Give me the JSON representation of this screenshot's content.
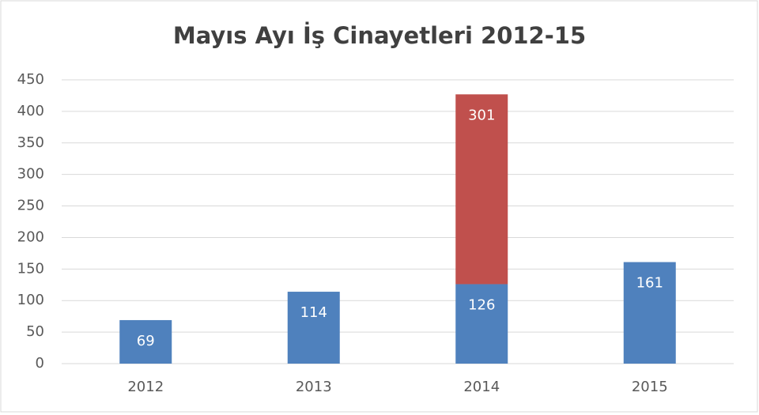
{
  "chart_data": {
    "type": "stacked_bar",
    "title": "Mayıs Ayı İş Cinayetleri 2012-15",
    "categories": [
      "2012",
      "2013",
      "2014",
      "2015"
    ],
    "series": [
      {
        "color": "#4f81bd",
        "values": [
          69,
          114,
          126,
          161
        ]
      },
      {
        "color": "#c0504d",
        "values": [
          null,
          null,
          301,
          null
        ]
      }
    ],
    "ylim": [
      0,
      450
    ],
    "yticks": [
      0,
      50,
      100,
      150,
      200,
      250,
      300,
      350,
      400,
      450
    ],
    "grid": true
  }
}
